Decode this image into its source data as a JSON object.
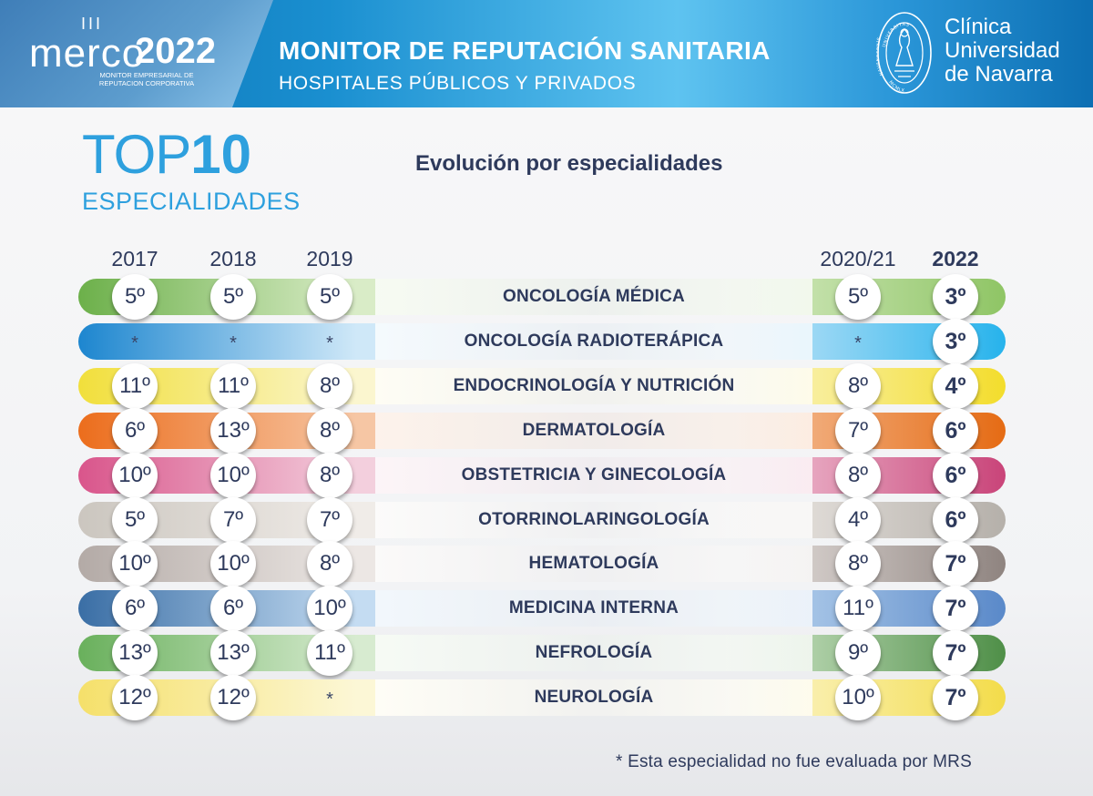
{
  "header": {
    "merco_bars": "III",
    "merco_word": "merco",
    "merco_year": "2022",
    "merco_sub_line1": "MONITOR EMPRESARIAL DE",
    "merco_sub_line2": "REPUTACION CORPORATIVA",
    "title": "MONITOR DE REPUTACIÓN SANITARIA",
    "subtitle": "HOSPITALES PÚBLICOS Y PRIVADOS",
    "seal_top": "UNIVERSITAS",
    "seal_left": "NAVARRENSIS",
    "seal_bottom": "MCMLX",
    "brand_line1": "Clínica",
    "brand_line2": "Universidad",
    "brand_line3": "de Navarra"
  },
  "badge": {
    "top": "TOP",
    "number": "10",
    "sub": "ESPECIALIDADES"
  },
  "chart_data": {
    "type": "table",
    "title": "Evolución por especialidades",
    "columns": [
      "2017",
      "2018",
      "2019",
      "2020/21",
      "2022"
    ],
    "rows": [
      {
        "name": "ONCOLOGÍA MÉDICA",
        "values": [
          "5º",
          "5º",
          "5º",
          "5º",
          "3º"
        ]
      },
      {
        "name": "ONCOLOGÍA RADIOTERÁPICA",
        "values": [
          "*",
          "*",
          "*",
          "*",
          "3º"
        ]
      },
      {
        "name": "ENDOCRINOLOGÍA Y NUTRICIÓN",
        "values": [
          "11º",
          "11º",
          "8º",
          "8º",
          "4º"
        ]
      },
      {
        "name": "DERMATOLOGÍA",
        "values": [
          "6º",
          "13º",
          "8º",
          "7º",
          "6º"
        ]
      },
      {
        "name": "OBSTETRICIA Y GINECOLOGÍA",
        "values": [
          "10º",
          "10º",
          "8º",
          "8º",
          "6º"
        ]
      },
      {
        "name": "OTORRINOLARINGOLOGÍA",
        "values": [
          "5º",
          "7º",
          "7º",
          "4º",
          "6º"
        ]
      },
      {
        "name": "HEMATOLOGÍA",
        "values": [
          "10º",
          "10º",
          "8º",
          "8º",
          "7º"
        ]
      },
      {
        "name": "MEDICINA INTERNA",
        "values": [
          "6º",
          "6º",
          "10º",
          "11º",
          "7º"
        ]
      },
      {
        "name": "NEFROLOGÍA",
        "values": [
          "13º",
          "13º",
          "11º",
          "9º",
          "7º"
        ]
      },
      {
        "name": "NEUROLOGÍA",
        "values": [
          "12º",
          "12º",
          "*",
          "10º",
          "7º"
        ]
      }
    ],
    "footnote": "* Esta especialidad no fue evaluada por MRS"
  },
  "colors": {
    "row_palettes": [
      [
        "#6cb04a",
        "#d9ecc7",
        "#8fc565"
      ],
      [
        "#1d86cf",
        "#cfe8f8",
        "#27b3ec"
      ],
      [
        "#f1df3b",
        "#fbf6cf",
        "#f3dd2c"
      ],
      [
        "#ec6d1c",
        "#f6c6a4",
        "#e56b14"
      ],
      [
        "#d9558b",
        "#f3cfdd",
        "#c94479"
      ],
      [
        "#cbc6bf",
        "#f0ece8",
        "#b5b0aa"
      ],
      [
        "#b3aaa6",
        "#ece7e4",
        "#8f8480"
      ],
      [
        "#3a6ea5",
        "#c4dcf2",
        "#5a89c9"
      ],
      [
        "#69b05c",
        "#d7ebd0",
        "#4f8f48"
      ],
      [
        "#f5e06a",
        "#fcf7d6",
        "#f3dc4a"
      ]
    ],
    "title_text": "#2e3a5c",
    "accent": "#2ea0de"
  }
}
